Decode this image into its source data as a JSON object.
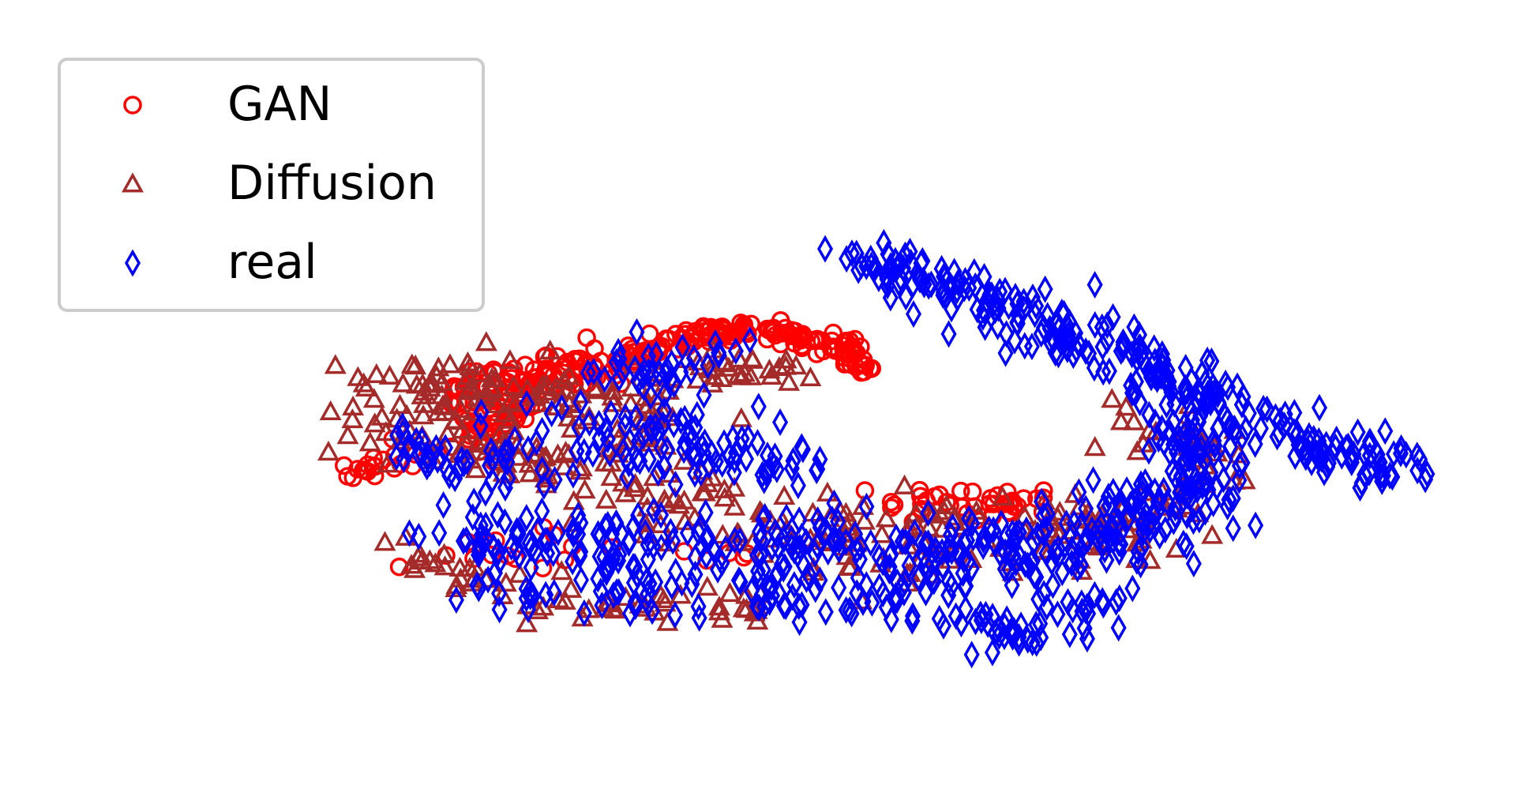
{
  "chart_data": {
    "type": "scatter",
    "title": "",
    "xlabel": "",
    "ylabel": "",
    "axes_visible": false,
    "grid": false,
    "legend": {
      "placement": "top-left",
      "entries": [
        {
          "label": "GAN",
          "marker": "circle",
          "color": "#ff0000"
        },
        {
          "label": "Diffusion",
          "marker": "triangle",
          "color": "#a52a2a"
        },
        {
          "label": "real",
          "marker": "diamond",
          "color": "#0000ff"
        }
      ]
    },
    "xlim": [
      0,
      100
    ],
    "ylim": [
      0,
      100
    ],
    "series": [
      {
        "name": "GAN",
        "marker": "circle",
        "color": "#ff0000",
        "clusters": [
          {
            "path": [
              [
                21,
                48
              ],
              [
                23,
                52
              ],
              [
                25,
                57
              ],
              [
                27,
                60
              ],
              [
                30,
                62
              ],
              [
                33,
                61
              ]
            ],
            "spread": 1.6,
            "count": 110
          },
          {
            "path": [
              [
                33,
                62
              ],
              [
                35,
                64
              ],
              [
                38,
                66
              ],
              [
                41,
                67
              ],
              [
                44,
                67
              ],
              [
                47,
                66
              ],
              [
                50,
                64
              ],
              [
                52,
                61
              ]
            ],
            "spread": 1.0,
            "count": 150
          },
          {
            "path": [
              [
                20,
                56
              ],
              [
                22,
                58
              ],
              [
                25,
                60
              ]
            ],
            "spread": 1.5,
            "count": 30
          },
          {
            "path": [
              [
                12,
                43
              ],
              [
                14,
                45
              ],
              [
                16,
                46
              ]
            ],
            "spread": 1.2,
            "count": 20
          },
          {
            "path": [
              [
                52,
                38
              ],
              [
                58,
                38
              ],
              [
                62,
                38
              ],
              [
                66,
                40
              ]
            ],
            "spread": 1.3,
            "count": 40
          },
          {
            "path": [
              [
                18,
                30
              ],
              [
                30,
                30
              ],
              [
                42,
                30
              ]
            ],
            "spread": 2.0,
            "count": 20
          }
        ]
      },
      {
        "name": "Diffusion",
        "marker": "triangle",
        "color": "#a52a2a",
        "clusters": [
          {
            "path": [
              [
                14,
                55
              ],
              [
                18,
                52
              ],
              [
                24,
                48
              ],
              [
                30,
                44
              ],
              [
                36,
                40
              ],
              [
                42,
                36
              ],
              [
                48,
                32
              ],
              [
                54,
                32
              ],
              [
                62,
                32
              ],
              [
                70,
                33
              ],
              [
                76,
                34
              ]
            ],
            "spread": 4.0,
            "count": 260
          },
          {
            "path": [
              [
                16,
                58
              ],
              [
                22,
                57
              ],
              [
                28,
                56
              ],
              [
                34,
                55
              ],
              [
                38,
                54
              ]
            ],
            "spread": 2.6,
            "count": 80
          },
          {
            "path": [
              [
                36,
                60
              ],
              [
                40,
                60
              ],
              [
                44,
                61
              ],
              [
                48,
                60
              ]
            ],
            "spread": 1.6,
            "count": 30
          },
          {
            "path": [
              [
                70,
                53
              ],
              [
                76,
                48
              ],
              [
                80,
                44
              ]
            ],
            "spread": 3.0,
            "count": 30
          },
          {
            "path": [
              [
                16,
                30
              ],
              [
                20,
                26
              ],
              [
                26,
                22
              ],
              [
                34,
                20
              ],
              [
                42,
                20
              ],
              [
                46,
                22
              ]
            ],
            "spread": 2.0,
            "count": 60
          }
        ]
      },
      {
        "name": "real",
        "marker": "diamond",
        "color": "#0000ff",
        "clusters": [
          {
            "path": [
              [
                51,
                80
              ],
              [
                55,
                77
              ],
              [
                59,
                74
              ],
              [
                63,
                71
              ],
              [
                67,
                68
              ],
              [
                71,
                64
              ],
              [
                74,
                60
              ],
              [
                77,
                54
              ],
              [
                78,
                48
              ],
              [
                79,
                42
              ]
            ],
            "spread": 2.4,
            "count": 230
          },
          {
            "path": [
              [
                74,
                62
              ],
              [
                78,
                58
              ],
              [
                82,
                55
              ],
              [
                85,
                50
              ],
              [
                87,
                46
              ],
              [
                90,
                45
              ],
              [
                93,
                45
              ],
              [
                95,
                45
              ]
            ],
            "spread": 2.2,
            "count": 110
          },
          {
            "path": [
              [
                20,
                34
              ],
              [
                26,
                32
              ],
              [
                32,
                30
              ],
              [
                40,
                30
              ],
              [
                48,
                30
              ],
              [
                56,
                30
              ],
              [
                62,
                30
              ],
              [
                68,
                31
              ],
              [
                72,
                34
              ],
              [
                76,
                38
              ],
              [
                78,
                40
              ]
            ],
            "spread": 3.4,
            "count": 360
          },
          {
            "path": [
              [
                18,
                44
              ],
              [
                24,
                46
              ],
              [
                30,
                48
              ],
              [
                36,
                48
              ],
              [
                42,
                46
              ],
              [
                48,
                44
              ]
            ],
            "spread": 3.0,
            "count": 120
          },
          {
            "path": [
              [
                26,
                56
              ],
              [
                30,
                58
              ],
              [
                34,
                60
              ],
              [
                38,
                62
              ],
              [
                42,
                64
              ]
            ],
            "spread": 2.4,
            "count": 40
          },
          {
            "path": [
              [
                22,
                24
              ],
              [
                30,
                22
              ],
              [
                38,
                22
              ],
              [
                46,
                22
              ],
              [
                52,
                22
              ],
              [
                58,
                20
              ]
            ],
            "spread": 2.2,
            "count": 80
          },
          {
            "path": [
              [
                60,
                18
              ],
              [
                64,
                16
              ],
              [
                68,
                20
              ],
              [
                72,
                22
              ]
            ],
            "spread": 2.0,
            "count": 50
          },
          {
            "path": [
              [
                15,
                46
              ],
              [
                16,
                48
              ],
              [
                17,
                44
              ]
            ],
            "spread": 1.2,
            "count": 10
          }
        ]
      }
    ]
  }
}
